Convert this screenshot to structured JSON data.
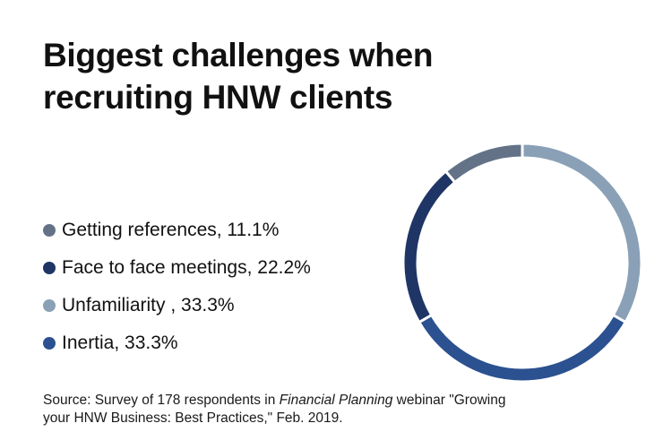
{
  "title_lines": [
    "Biggest challenges when",
    "recruiting HNW clients"
  ],
  "chart_data": {
    "type": "pie",
    "title": "Biggest challenges when recruiting HNW clients",
    "donut": true,
    "legend_position": "left",
    "slices": [
      {
        "label": "Getting references, 11.1%",
        "name": "Getting references",
        "value": 11.1,
        "color": "#637287"
      },
      {
        "label": "Face to face meetings, 22.2%",
        "name": "Face to face meetings",
        "value": 22.2,
        "color": "#1f3566"
      },
      {
        "label": "Unfamiliarity , 33.3%",
        "name": "Unfamiliarity",
        "value": 33.3,
        "color": "#8aa0b6"
      },
      {
        "label": "Inertia, 33.3%",
        "name": "Inertia",
        "value": 33.3,
        "color": "#2b5190"
      }
    ],
    "drawing_order": [
      "Unfamiliarity",
      "Inertia",
      "Face to face meetings",
      "Getting references"
    ]
  },
  "source": {
    "prefix": "Source: Survey of 178 respondents in ",
    "italic": "Financial Planning",
    "line1_suffix": " webinar \"Growing",
    "line2": "your HNW Business: Best Practices,\" Feb. 2019."
  }
}
